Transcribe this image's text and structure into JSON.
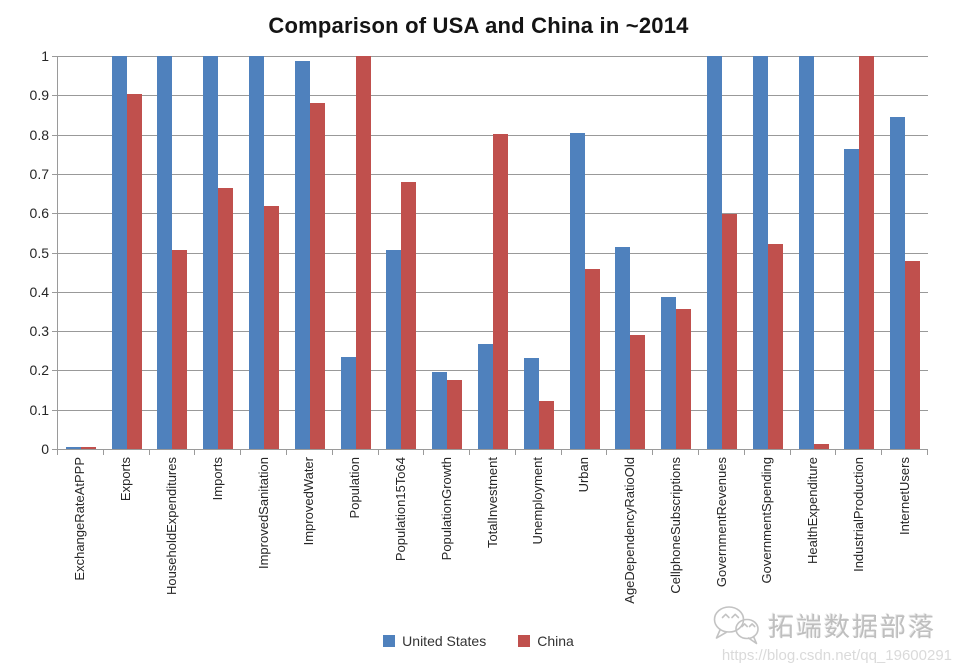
{
  "chart_data": {
    "type": "bar",
    "title": "Comparison of USA and China in ~2014",
    "categories": [
      "ExchangeRateAtPPP",
      "Exports",
      "HouseholdExpenditures",
      "Imports",
      "ImprovedSanitation",
      "ImprovedWater",
      "Population",
      "Population15To64",
      "PopulationGrowth",
      "TotalInvestment",
      "Unemployment",
      "Urban",
      "AgeDependencyRatioOld",
      "CellphoneSubscriptions",
      "GovernmentRevenues",
      "GovernmentSpending",
      "HealthExpenditure",
      "IndustrialProduction",
      "InternetUsers"
    ],
    "series": [
      {
        "name": "United States",
        "color": "#4F81BD",
        "values": [
          0.004,
          1,
          1,
          1,
          1,
          0.987,
          0.234,
          0.507,
          0.196,
          0.266,
          0.232,
          0.803,
          0.513,
          0.388,
          1,
          1,
          1,
          0.763,
          0.845
        ]
      },
      {
        "name": "China",
        "color": "#C0504D",
        "values": [
          0.005,
          0.904,
          0.506,
          0.663,
          0.618,
          0.881,
          1,
          0.679,
          0.176,
          0.801,
          0.121,
          0.458,
          0.29,
          0.357,
          0.598,
          0.521,
          0.014,
          1,
          0.479
        ]
      }
    ],
    "xlabel": "",
    "ylabel": "",
    "ylim": [
      0,
      1
    ],
    "yticks": [
      "0",
      "0.1",
      "0.2",
      "0.3",
      "0.4",
      "0.5",
      "0.6",
      "0.7",
      "0.8",
      "0.9",
      "1"
    ],
    "grid": "horizontal",
    "gridline_color": "#999999",
    "axis_color": "#9a9a9a",
    "legend_position": "bottom-center"
  },
  "watermark": {
    "icon": "wechat-icon",
    "brand": "拓端数据部落",
    "url": "https://blog.csdn.net/qq_19600291"
  }
}
